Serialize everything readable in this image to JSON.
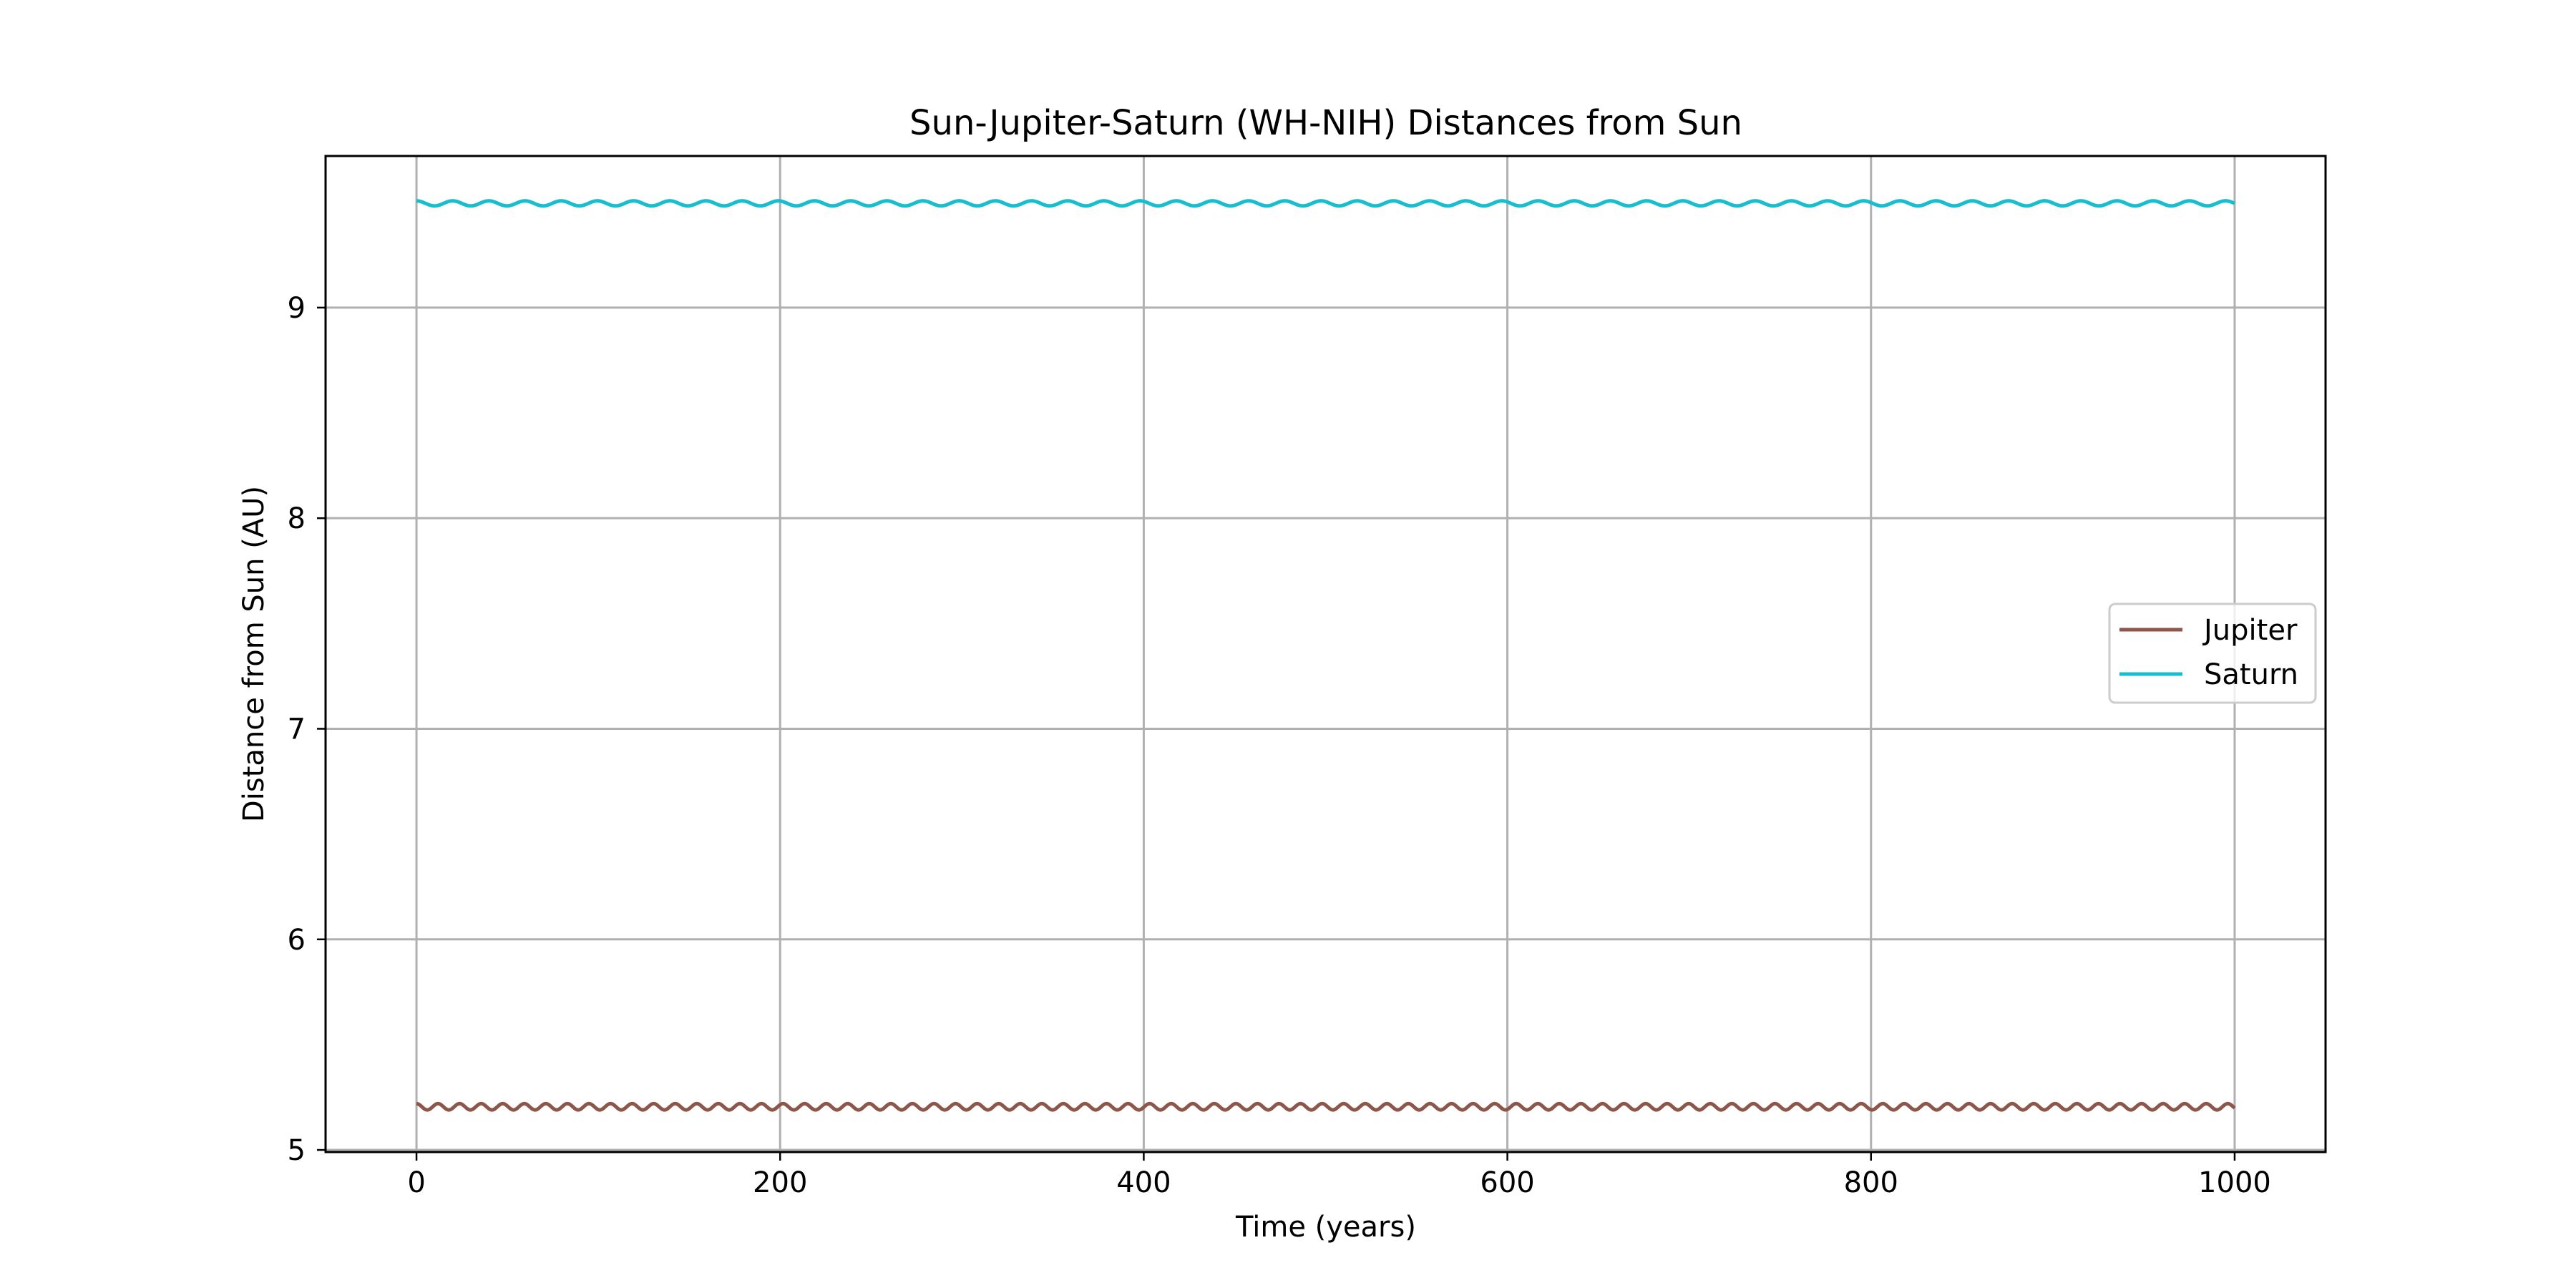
{
  "chart_data": {
    "type": "line",
    "title": "Sun-Jupiter-Saturn (WH-NIH) Distances from Sun",
    "xlabel": "Time (years)",
    "ylabel": "Distance from Sun (AU)",
    "xlim": [
      -50,
      1050
    ],
    "ylim": [
      4.99,
      9.72
    ],
    "xticks": [
      0,
      200,
      400,
      600,
      800,
      1000
    ],
    "xtick_labels": [
      "0",
      "200",
      "400",
      "600",
      "800",
      "1000"
    ],
    "yticks": [
      5,
      6,
      7,
      8,
      9
    ],
    "ytick_labels": [
      "5",
      "6",
      "7",
      "8",
      "9"
    ],
    "grid": true,
    "legend_position": "center-right",
    "series": [
      {
        "name": "Jupiter",
        "color": "#8c564b",
        "mean": 5.205,
        "amplitude": 0.015,
        "period_years": 11.86,
        "x_range": [
          0,
          1000
        ]
      },
      {
        "name": "Saturn",
        "color": "#17becf",
        "mean": 9.495,
        "amplitude": 0.012,
        "period_years": 19.9,
        "x_range": [
          0,
          1000
        ]
      }
    ]
  }
}
